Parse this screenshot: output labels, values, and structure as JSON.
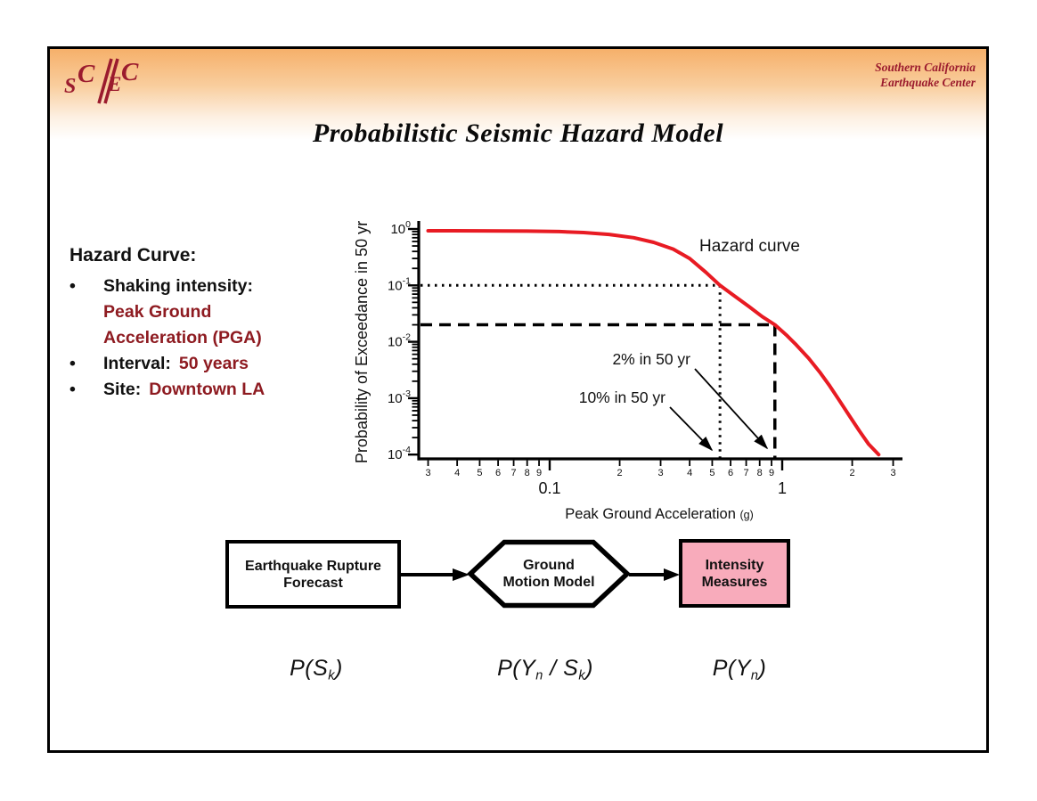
{
  "slide": {
    "logo_letters": {
      "s": "S",
      "c1": "C",
      "e": "E",
      "c2": "C"
    },
    "org_line1": "Southern California",
    "org_line2": "Earthquake Center",
    "title": "Probabilistic Seismic Hazard Model"
  },
  "info": {
    "heading": "Hazard Curve:",
    "bullet_char": "•",
    "items": [
      {
        "label": "Shaking intensity:",
        "value_lines": [
          "Peak Ground",
          "Acceleration (PGA)"
        ]
      },
      {
        "label": "Interval:",
        "value": "50 years"
      },
      {
        "label": "Site:",
        "value": "Downtown LA"
      }
    ]
  },
  "chart_data": {
    "type": "line",
    "title": "",
    "xlabel": "Peak Ground Acceleration",
    "xlabel_unit": "(g)",
    "ylabel": "Probability of Exceedance in 50 yr",
    "x_scale": "log",
    "y_scale": "log",
    "xlim": [
      0.03,
      3
    ],
    "ylim": [
      0.0001,
      1
    ],
    "grid": false,
    "x_major_ticks": [
      {
        "v": 0.1,
        "label": "0.1"
      },
      {
        "v": 1,
        "label": "1"
      }
    ],
    "x_minor_ticks": [
      {
        "v": 0.03,
        "label": "3"
      },
      {
        "v": 0.04,
        "label": "4"
      },
      {
        "v": 0.05,
        "label": "5"
      },
      {
        "v": 0.06,
        "label": "6"
      },
      {
        "v": 0.07,
        "label": "7"
      },
      {
        "v": 0.08,
        "label": "8"
      },
      {
        "v": 0.09,
        "label": "9"
      },
      {
        "v": 0.2,
        "label": "2"
      },
      {
        "v": 0.3,
        "label": "3"
      },
      {
        "v": 0.4,
        "label": "4"
      },
      {
        "v": 0.5,
        "label": "5"
      },
      {
        "v": 0.6,
        "label": "6"
      },
      {
        "v": 0.7,
        "label": "7"
      },
      {
        "v": 0.8,
        "label": "8"
      },
      {
        "v": 0.9,
        "label": "9"
      },
      {
        "v": 2,
        "label": "2"
      },
      {
        "v": 3,
        "label": "3"
      }
    ],
    "y_ticks": [
      {
        "exp": 0,
        "sup": "0"
      },
      {
        "exp": -1,
        "sup": "-1"
      },
      {
        "exp": -2,
        "sup": "-2"
      },
      {
        "exp": -3,
        "sup": "-3"
      },
      {
        "exp": -4,
        "sup": "-4"
      }
    ],
    "series": [
      {
        "name": "Hazard curve",
        "color": "#e81b23",
        "points": [
          [
            0.03,
            0.93
          ],
          [
            0.05,
            0.925
          ],
          [
            0.08,
            0.915
          ],
          [
            0.11,
            0.9
          ],
          [
            0.14,
            0.865
          ],
          [
            0.18,
            0.8
          ],
          [
            0.23,
            0.7
          ],
          [
            0.28,
            0.58
          ],
          [
            0.34,
            0.44
          ],
          [
            0.4,
            0.3
          ],
          [
            0.47,
            0.17
          ],
          [
            0.54,
            0.1
          ],
          [
            0.62,
            0.066
          ],
          [
            0.72,
            0.042
          ],
          [
            0.82,
            0.028
          ],
          [
            0.93,
            0.02
          ],
          [
            1.05,
            0.0128
          ],
          [
            1.15,
            0.0088
          ],
          [
            1.3,
            0.0051
          ],
          [
            1.45,
            0.0029
          ],
          [
            1.6,
            0.00165
          ],
          [
            1.75,
            0.00095
          ],
          [
            1.95,
            0.00048
          ],
          [
            2.15,
            0.00026
          ],
          [
            2.35,
            0.000155
          ],
          [
            2.6,
            0.0001
          ]
        ]
      }
    ],
    "guides": [
      {
        "label": "10% in 50 yr",
        "prob": 0.1,
        "pga": 0.54,
        "style": "dotted"
      },
      {
        "label": "2% in 50 yr",
        "prob": 0.02,
        "pga": 0.93,
        "style": "dashed"
      }
    ],
    "curve_label": "Hazard curve"
  },
  "flow": {
    "nodes": [
      {
        "shape": "rect",
        "lines": [
          "Earthquake Rupture",
          "Forecast"
        ],
        "fill": "#ffffff"
      },
      {
        "shape": "hexagon",
        "lines": [
          "Ground",
          "Motion Model"
        ],
        "fill": "#ffffff"
      },
      {
        "shape": "rect",
        "lines": [
          "Intensity",
          "Measures"
        ],
        "fill": "#f8abbb"
      }
    ]
  },
  "formulas": [
    {
      "p1": "P(S",
      "s1": "k",
      "p2": ")"
    },
    {
      "p1": "P(Y",
      "s1": "n",
      "p2": " / S",
      "s2": "k",
      "p3": ")"
    },
    {
      "p1": "P(Y",
      "s1": "n",
      "p2": ")"
    }
  ],
  "colors": {
    "maroon_text": "#8e1b21",
    "logo_maroon": "#9b1b2e",
    "curve_red": "#e81b23",
    "intensity_pink": "#f8abbb",
    "banner_orange": "#f6b06a",
    "border_black": "#000000"
  }
}
